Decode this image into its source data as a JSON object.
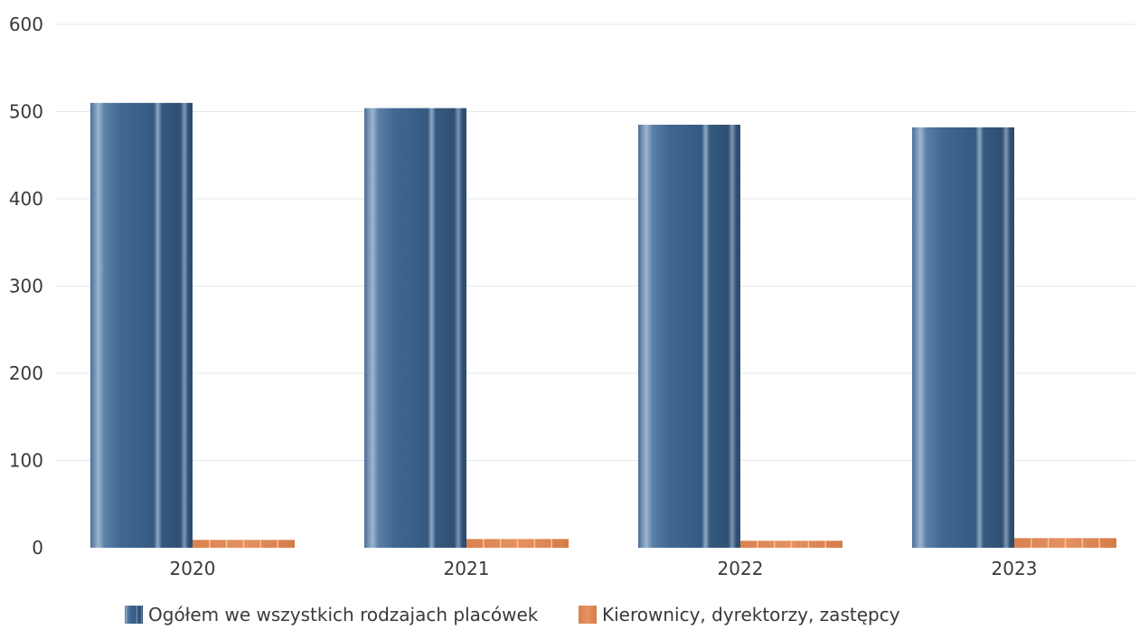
{
  "chart_data": {
    "type": "bar",
    "categories": [
      "2020",
      "2021",
      "2022",
      "2023"
    ],
    "series": [
      {
        "name": "Ogółem we wszystkich rodzajach placówek",
        "values": [
          510,
          504,
          485,
          482
        ],
        "color": "#3d6189"
      },
      {
        "name": "Kierownicy, dyrektorzy, zastępcy",
        "values": [
          9,
          10,
          8,
          11
        ],
        "color": "#e08550"
      }
    ],
    "yticks": [
      "0",
      "100",
      "200",
      "300",
      "400",
      "500",
      "600"
    ],
    "ylim": [
      0,
      600
    ],
    "grid": true,
    "legend": "bottom"
  }
}
